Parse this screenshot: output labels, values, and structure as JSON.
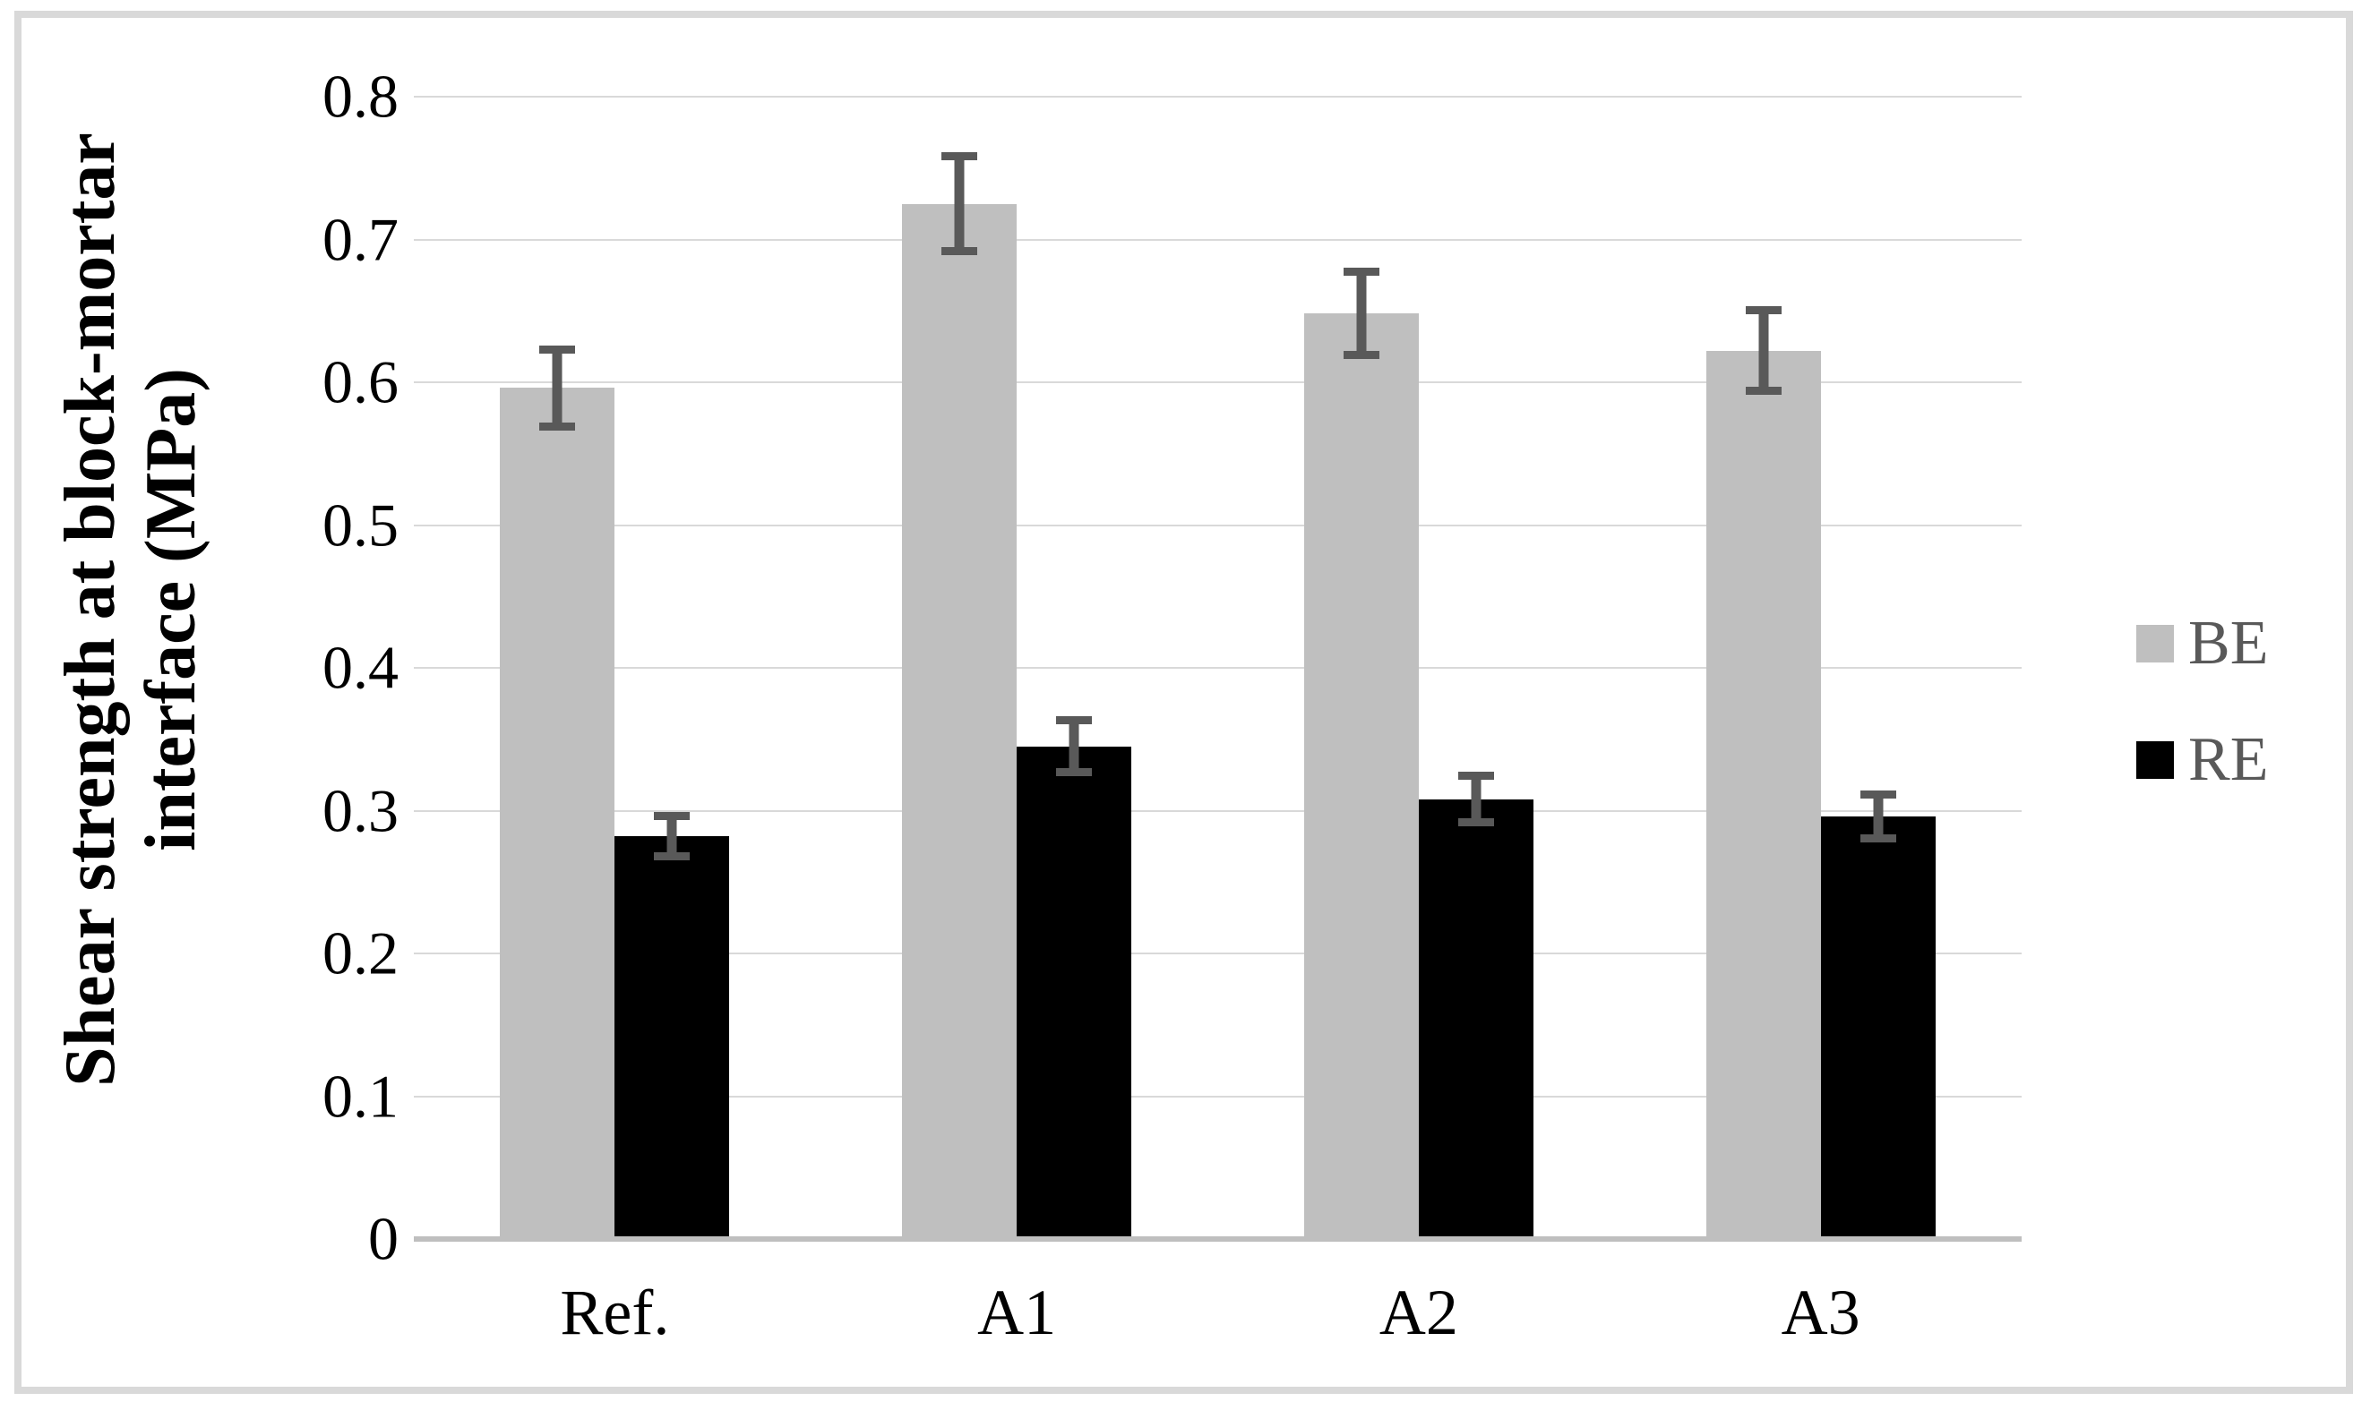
{
  "figure": {
    "background": "#FFFFFF",
    "border_color": "#D9D9D9"
  },
  "chart_data": {
    "type": "bar",
    "title": "",
    "categories": [
      "Ref.",
      "A1",
      "A2",
      "A3"
    ],
    "series": [
      {
        "name": "BE",
        "color": "#BFBFBF",
        "values": [
          0.596,
          0.725,
          0.648,
          0.622
        ],
        "errors": [
          0.03,
          0.036,
          0.032,
          0.031
        ]
      },
      {
        "name": "RE",
        "color": "#000000",
        "values": [
          0.282,
          0.345,
          0.308,
          0.296
        ],
        "errors": [
          0.017,
          0.021,
          0.019,
          0.018
        ]
      }
    ],
    "ylabel_lines": [
      "Shear strength at block-mortar",
      "interface (MPa)"
    ],
    "xlabel": "",
    "ylim": [
      0,
      0.8
    ],
    "ytick_step": 0.1,
    "ytick_labels": [
      "0",
      "0.1",
      "0.2",
      "0.3",
      "0.4",
      "0.5",
      "0.6",
      "0.7",
      "0.8"
    ],
    "grid": true,
    "gridline_color": "#D9D9D9",
    "axis_line_color": "#BFBFBF",
    "error_bar_color": "#595959",
    "tick_text_color": "#000000",
    "legend_text_color": "#595959",
    "legend_position": "right"
  }
}
